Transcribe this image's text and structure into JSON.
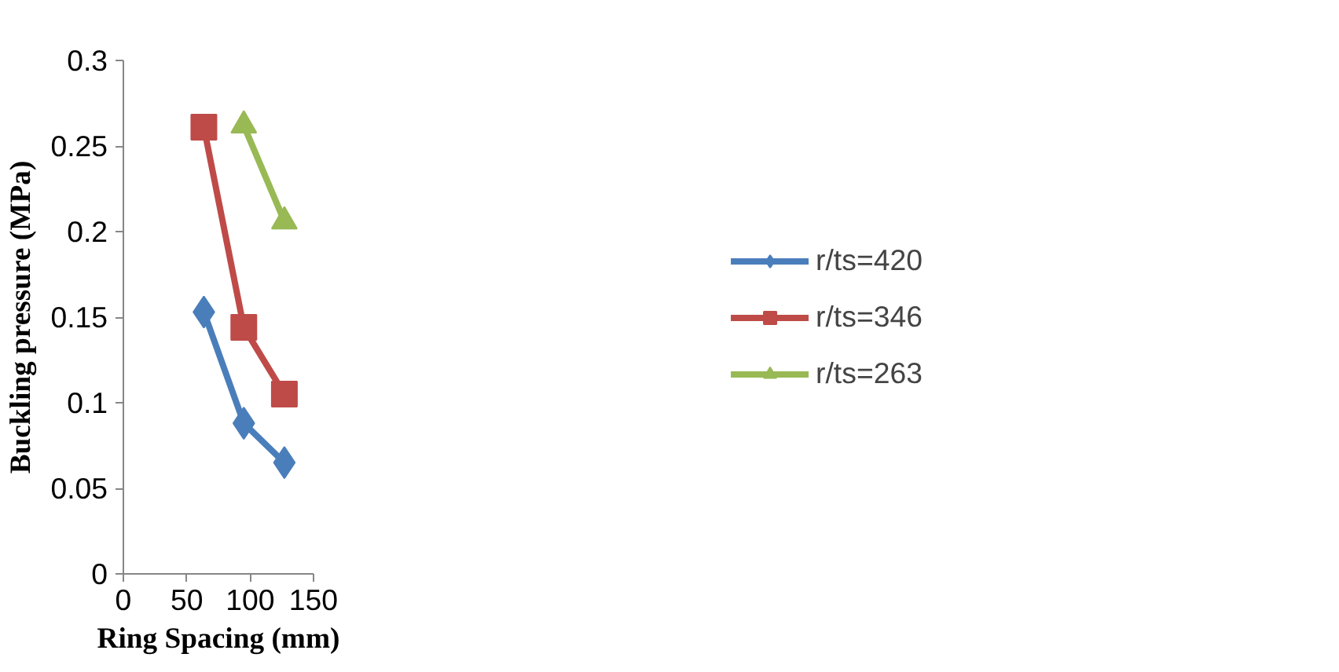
{
  "chart_data": {
    "type": "line",
    "xlabel": "Ring Spacing (mm)",
    "ylabel": "Buckling pressure (MPa)",
    "xlim": [
      0,
      150
    ],
    "xticks": [
      0,
      50,
      100,
      150
    ],
    "ylim": [
      0,
      0.3
    ],
    "yticks": [
      0,
      0.05,
      0.1,
      0.15,
      0.2,
      0.25,
      0.3
    ],
    "grid": false,
    "legend": "right",
    "line_style": "solid",
    "series": [
      {
        "name": "r/ts=420",
        "color": "#4a7ebb",
        "marker": "diamond",
        "x": [
          63.5,
          95,
          127
        ],
        "values": [
          0.153,
          0.088,
          0.065
        ]
      },
      {
        "name": "r/ts=346",
        "color": "#be4b48",
        "marker": "square",
        "x": [
          63.5,
          95,
          127
        ],
        "values": [
          0.261,
          0.144,
          0.105
        ]
      },
      {
        "name": "r/ts=263",
        "color": "#98b954",
        "marker": "triangle",
        "x": [
          95,
          127
        ],
        "values": [
          0.262,
          0.206
        ]
      }
    ]
  }
}
